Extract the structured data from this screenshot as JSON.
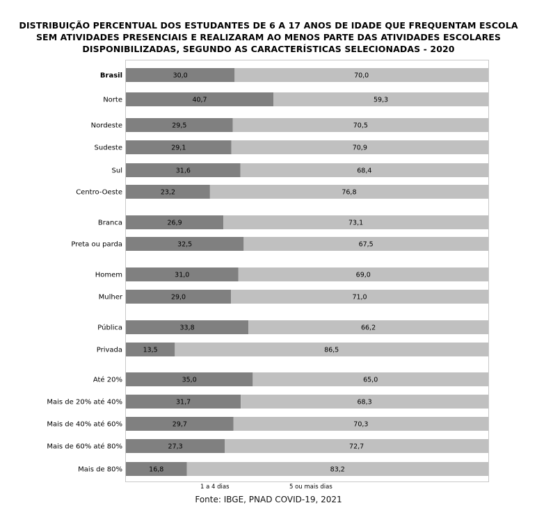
{
  "chart_data": {
    "type": "bar",
    "orientation": "horizontal",
    "stacked": true,
    "title_lines": [
      "DISTRIBUIÇÃO PERCENTUAL DOS ESTUDANTES DE 6 A 17 ANOS DE IDADE QUE FREQUENTAM ESCOLA",
      "SEM ATIVIDADES PRESENCIAIS E REALIZARAM AO MENOS PARTE DAS ATIVIDADES ESCOLARES",
      "DISPONIBILIZADAS, SEGUNDO AS CARACTERÍSTICAS SELECIONADAS - 2020"
    ],
    "categories": [
      "Brasil",
      "Norte",
      "Nordeste",
      "Sudeste",
      "Sul",
      "Centro-Oeste",
      "Branca",
      "Preta ou parda",
      "Homem",
      "Mulher",
      "Pública",
      "Privada",
      "Até 20%",
      "Mais de 20% até 40%",
      "Mais de 40% até 60%",
      "Mais de 60% até 80%",
      "Mais de 80%"
    ],
    "series": [
      {
        "name": "1 a 4 dias",
        "color": "#808080",
        "values": [
          30.0,
          40.7,
          29.5,
          29.1,
          31.6,
          23.2,
          26.9,
          32.5,
          31.0,
          29.0,
          33.8,
          13.5,
          35.0,
          31.7,
          29.7,
          27.3,
          16.8
        ],
        "labels": [
          "30,0",
          "40,7",
          "29,5",
          "29,1",
          "31,6",
          "23,2",
          "26,9",
          "32,5",
          "31,0",
          "29,0",
          "33,8",
          "13,5",
          "35,0",
          "31,7",
          "29,7",
          "27,3",
          "16,8"
        ]
      },
      {
        "name": "5 ou mais dias",
        "color": "#c0c0c0",
        "values": [
          70.0,
          59.3,
          70.5,
          70.9,
          68.4,
          76.8,
          73.1,
          67.5,
          69.0,
          71.0,
          66.2,
          86.5,
          65.0,
          68.3,
          70.3,
          72.7,
          83.2
        ],
        "labels": [
          "70,0",
          "59,3",
          "70,5",
          "70,9",
          "68,4",
          "76,8",
          "73,1",
          "67,5",
          "69,0",
          "71,0",
          "66,2",
          "86,5",
          "65,0",
          "68,3",
          "70,3",
          "72,7",
          "83,2"
        ]
      }
    ],
    "bold_categories": [
      "Brasil"
    ],
    "xlim": [
      0,
      100
    ],
    "grid": false,
    "legend_position": "bottom",
    "source": "Fonte: IBGE, PNAD COVID-19, 2021"
  }
}
